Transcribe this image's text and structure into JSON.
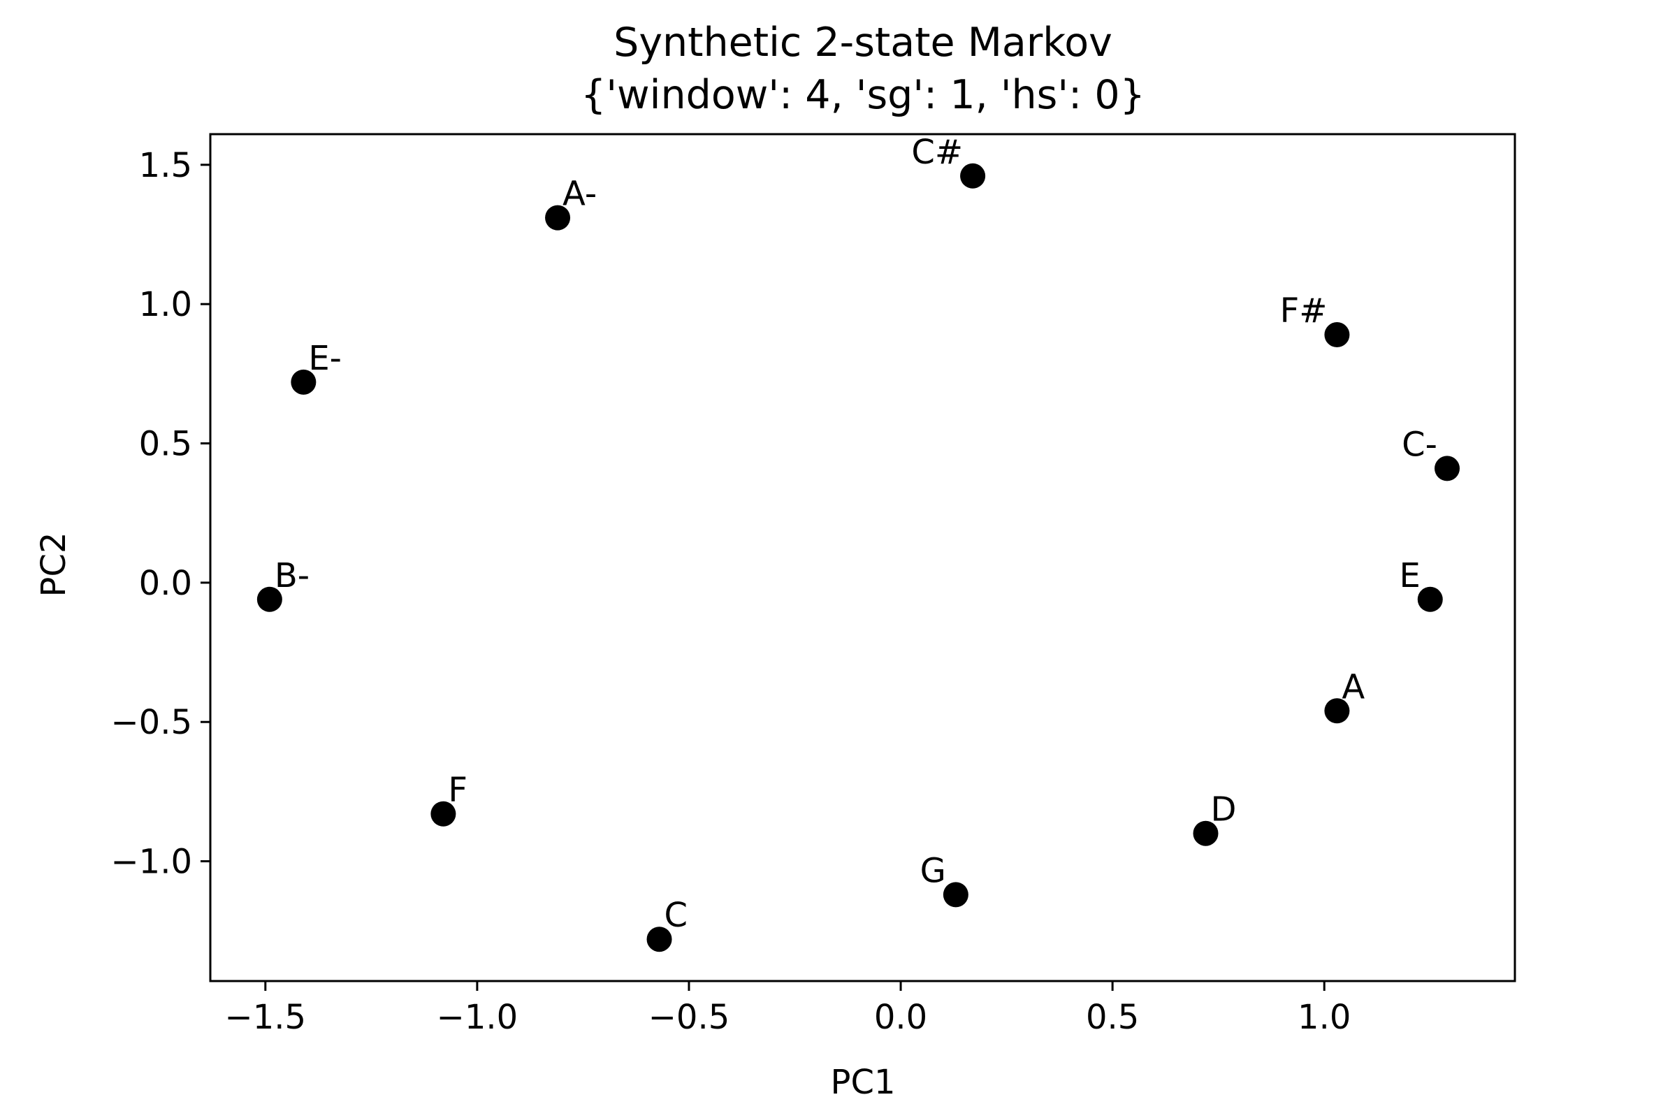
{
  "chart_data": {
    "type": "scatter",
    "title": "Synthetic 2-state Markov",
    "subtitle": "{'window': 4, 'sg': 1, 'hs': 0}",
    "xlabel": "PC1",
    "ylabel": "PC2",
    "xlim": [
      -1.63,
      1.45
    ],
    "ylim": [
      -1.43,
      1.61
    ],
    "xticks": [
      -1.5,
      -1.0,
      -0.5,
      0.0,
      0.5,
      1.0
    ],
    "xtick_labels": [
      "−1.5",
      "−1.0",
      "−0.5",
      "0.0",
      "0.5",
      "1.0"
    ],
    "yticks": [
      -1.0,
      -0.5,
      0.0,
      0.5,
      1.0,
      1.5
    ],
    "ytick_labels": [
      "−1.0",
      "−0.5",
      "0.0",
      "0.5",
      "1.0",
      "1.5"
    ],
    "grid": false,
    "marker_color": "#000000",
    "points": [
      {
        "label": "C#",
        "x": 0.17,
        "y": 1.46,
        "label_side": "left"
      },
      {
        "label": "A-",
        "x": -0.81,
        "y": 1.31,
        "label_side": "right"
      },
      {
        "label": "F#",
        "x": 1.03,
        "y": 0.89,
        "label_side": "left"
      },
      {
        "label": "E-",
        "x": -1.41,
        "y": 0.72,
        "label_side": "right"
      },
      {
        "label": "C-",
        "x": 1.29,
        "y": 0.41,
        "label_side": "left"
      },
      {
        "label": "B-",
        "x": -1.49,
        "y": -0.06,
        "label_side": "right"
      },
      {
        "label": "E",
        "x": 1.25,
        "y": -0.06,
        "label_side": "left"
      },
      {
        "label": "A",
        "x": 1.03,
        "y": -0.46,
        "label_side": "right"
      },
      {
        "label": "F",
        "x": -1.08,
        "y": -0.83,
        "label_side": "right"
      },
      {
        "label": "D",
        "x": 0.72,
        "y": -0.9,
        "label_side": "right"
      },
      {
        "label": "G",
        "x": 0.13,
        "y": -1.12,
        "label_side": "left"
      },
      {
        "label": "C",
        "x": -0.57,
        "y": -1.28,
        "label_side": "right"
      }
    ]
  }
}
